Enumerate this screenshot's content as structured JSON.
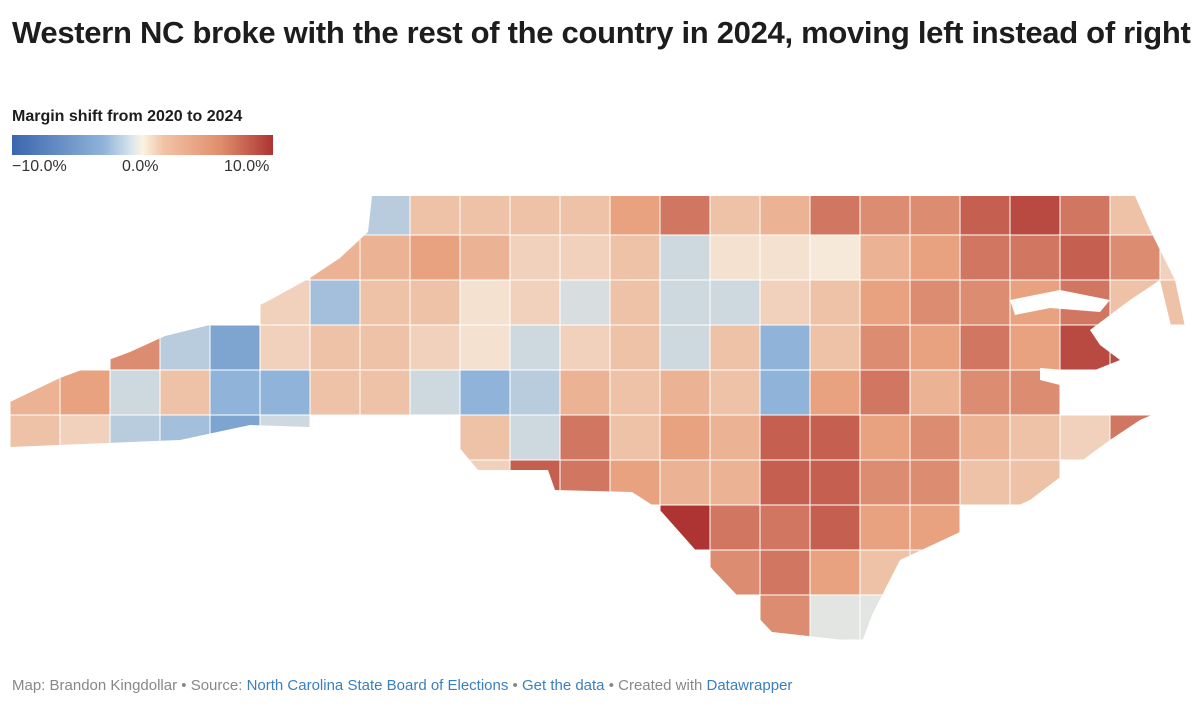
{
  "title": "Western NC broke with the rest of the country in 2024, moving left instead of right",
  "legend": {
    "title": "Margin shift from 2020 to 2024",
    "min_label": "−10.0%",
    "mid_label": "0.0%",
    "max_label": "10.0%"
  },
  "footer": {
    "byline": "Map: Brandon Kingdollar",
    "sep1": " • Source: ",
    "source_link": "North Carolina State Board of Elections",
    "sep2": " • ",
    "data_link": "Get the data",
    "sep3": " • Created with ",
    "tool_link": "Datawrapper"
  },
  "chart_data": {
    "type": "heatmap",
    "subtype": "choropleth-approximation",
    "unit": "percentage-point margin shift",
    "color_scale": {
      "domain": [
        -10,
        -5,
        0,
        5,
        10
      ],
      "colors": [
        "#3a66ad",
        "#8fb3d9",
        "#f7f1e3",
        "#e8a27f",
        "#ad3433"
      ]
    },
    "shift_grid": [
      [
        null,
        null,
        null,
        null,
        null,
        null,
        null,
        -3,
        3,
        3,
        3,
        3,
        5,
        7,
        3,
        4,
        7,
        6,
        6,
        8,
        9,
        7,
        3,
        null
      ],
      [
        null,
        null,
        null,
        null,
        null,
        null,
        4,
        4,
        5,
        4,
        2,
        2,
        3,
        -2,
        1,
        1,
        0.5,
        4,
        5,
        7,
        7,
        8,
        6,
        2
      ],
      [
        null,
        null,
        null,
        null,
        null,
        2,
        -4,
        3,
        3,
        1,
        2,
        -1.5,
        3,
        -2,
        -2,
        2,
        3,
        5,
        6,
        6,
        5,
        7,
        3,
        3
      ],
      [
        null,
        null,
        6,
        -3,
        -6,
        2,
        3,
        3,
        2,
        1,
        -2,
        2,
        3,
        -2,
        3,
        -5,
        3,
        6,
        5,
        7,
        5,
        9,
        9,
        null
      ],
      [
        4,
        5,
        -2,
        3,
        -5,
        -5,
        3,
        3,
        -2,
        -5,
        -3,
        4,
        3,
        4,
        3,
        -5,
        5,
        7,
        4,
        6,
        6,
        null,
        null,
        null
      ],
      [
        3,
        2,
        -3,
        -4,
        -6,
        -2,
        null,
        null,
        null,
        3,
        -2,
        7,
        3,
        5,
        4,
        8,
        8,
        5,
        6,
        4,
        3,
        2,
        7,
        null
      ],
      [
        null,
        null,
        null,
        null,
        null,
        null,
        null,
        null,
        null,
        2,
        8,
        7,
        5,
        4,
        4,
        8,
        8,
        6,
        6,
        3,
        3,
        null,
        null,
        null
      ],
      [
        null,
        null,
        null,
        null,
        null,
        null,
        null,
        null,
        null,
        null,
        null,
        null,
        null,
        11,
        7,
        7,
        8,
        5,
        5,
        null,
        null,
        null,
        null,
        null
      ],
      [
        null,
        null,
        null,
        null,
        null,
        null,
        null,
        null,
        null,
        null,
        null,
        null,
        null,
        null,
        6,
        7,
        5,
        3,
        3,
        null,
        null,
        null,
        null,
        null
      ],
      [
        null,
        null,
        null,
        null,
        null,
        null,
        null,
        null,
        null,
        null,
        null,
        null,
        null,
        null,
        null,
        6,
        -1,
        -1,
        null,
        null,
        null,
        null,
        null,
        null
      ]
    ]
  }
}
